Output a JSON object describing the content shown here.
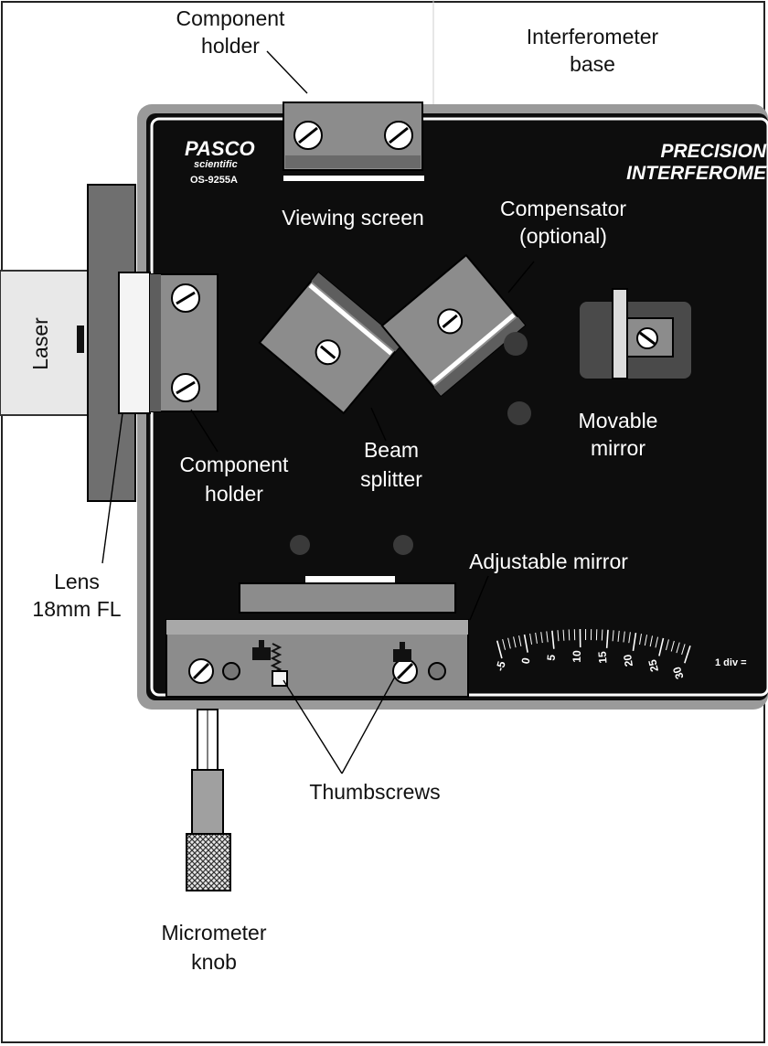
{
  "device": {
    "brand": "PASCO",
    "brand_sub": "scientific",
    "model": "OS-9255A",
    "title_line1": "PRECISION",
    "title_line2": "INTERFEROME",
    "division_note": "1 div ="
  },
  "labels": {
    "component_holder_top_1": "Component",
    "component_holder_top_2": "holder",
    "interferometer_base_1": "Interferometer",
    "interferometer_base_2": "base",
    "viewing_screen": "Viewing screen",
    "compensator_1": "Compensator",
    "compensator_2": "(optional)",
    "laser": "Laser",
    "movable_mirror_1": "Movable",
    "movable_mirror_2": "mirror",
    "beam_splitter_1": "Beam",
    "beam_splitter_2": "splitter",
    "component_holder_left_1": "Component",
    "component_holder_left_2": "holder",
    "lens_1": "Lens",
    "lens_2": "18mm FL",
    "adjustable_mirror": "Adjustable mirror",
    "thumbscrews": "Thumbscrews",
    "micrometer_knob_1": "Micrometer",
    "micrometer_knob_2": "knob"
  },
  "scale": {
    "tick_labels": [
      "-5",
      "0",
      "5",
      "10",
      "15",
      "20",
      "25",
      "30"
    ]
  }
}
